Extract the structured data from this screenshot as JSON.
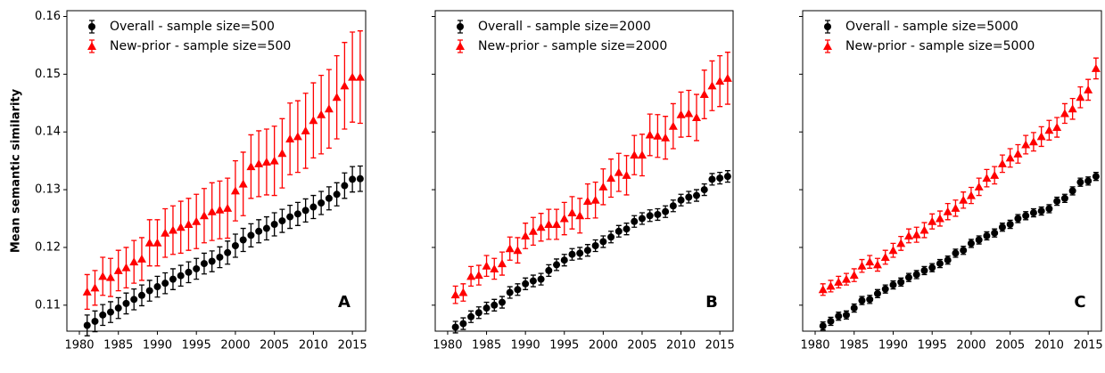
{
  "chart_data": [
    {
      "type": "errorbar",
      "ylabel": "Mean semantic similarity",
      "annotation": "A",
      "x": [
        1981,
        1982,
        1983,
        1984,
        1985,
        1986,
        1987,
        1988,
        1989,
        1990,
        1991,
        1992,
        1993,
        1994,
        1995,
        1996,
        1997,
        1998,
        1999,
        2000,
        2001,
        2002,
        2003,
        2004,
        2005,
        2006,
        2007,
        2008,
        2009,
        2010,
        2011,
        2012,
        2013,
        2014,
        2015,
        2016
      ],
      "xlim": [
        1978.4,
        2016.7
      ],
      "xticks": [
        1980,
        1985,
        1990,
        1995,
        2000,
        2005,
        2010,
        2015
      ],
      "ylim": [
        0.1055,
        0.161
      ],
      "yticks": [
        0.11,
        0.12,
        0.13,
        0.14,
        0.15,
        0.16
      ],
      "ytick_labels": true,
      "legend": "upper left",
      "series": [
        {
          "name": "Overall - sample size=500",
          "color": "#000000",
          "marker": "circle",
          "values": [
            0.1065,
            0.1072,
            0.1083,
            0.1088,
            0.1095,
            0.1103,
            0.111,
            0.1117,
            0.1125,
            0.1132,
            0.1138,
            0.1145,
            0.1151,
            0.1157,
            0.1163,
            0.1172,
            0.1176,
            0.1183,
            0.1191,
            0.1203,
            0.1213,
            0.1221,
            0.1228,
            0.1233,
            0.124,
            0.1246,
            0.1253,
            0.1258,
            0.1264,
            0.127,
            0.1277,
            0.1285,
            0.1292,
            0.1307,
            0.1318,
            0.1319
          ],
          "errors": [
            0.0018,
            0.0018,
            0.0018,
            0.0018,
            0.0018,
            0.0018,
            0.0018,
            0.0018,
            0.0018,
            0.0018,
            0.0018,
            0.0018,
            0.0018,
            0.0018,
            0.0018,
            0.0018,
            0.0018,
            0.0018,
            0.002,
            0.002,
            0.002,
            0.002,
            0.002,
            0.002,
            0.002,
            0.002,
            0.002,
            0.002,
            0.002,
            0.002,
            0.002,
            0.002,
            0.002,
            0.0022,
            0.0022,
            0.0022
          ]
        },
        {
          "name": "New-prior - sample size=500",
          "color": "#ff0000",
          "marker": "triangle",
          "values": [
            0.1123,
            0.113,
            0.115,
            0.1148,
            0.116,
            0.1165,
            0.1175,
            0.118,
            0.1208,
            0.1208,
            0.1225,
            0.123,
            0.1235,
            0.124,
            0.1245,
            0.1255,
            0.1262,
            0.1265,
            0.1268,
            0.1298,
            0.131,
            0.134,
            0.1345,
            0.1348,
            0.135,
            0.1363,
            0.1388,
            0.1392,
            0.1402,
            0.142,
            0.143,
            0.144,
            0.146,
            0.148,
            0.1495,
            0.1495
          ],
          "errors": [
            0.003,
            0.003,
            0.0033,
            0.0033,
            0.0035,
            0.0035,
            0.0037,
            0.0037,
            0.004,
            0.004,
            0.0042,
            0.0042,
            0.0045,
            0.0045,
            0.0047,
            0.0047,
            0.005,
            0.005,
            0.0052,
            0.0052,
            0.0055,
            0.0055,
            0.0057,
            0.0057,
            0.006,
            0.006,
            0.0062,
            0.0062,
            0.0065,
            0.0065,
            0.0068,
            0.0068,
            0.0072,
            0.0075,
            0.0078,
            0.008
          ]
        }
      ]
    },
    {
      "type": "errorbar",
      "annotation": "B",
      "x": [
        1981,
        1982,
        1983,
        1984,
        1985,
        1986,
        1987,
        1988,
        1989,
        1990,
        1991,
        1992,
        1993,
        1994,
        1995,
        1996,
        1997,
        1998,
        1999,
        2000,
        2001,
        2002,
        2003,
        2004,
        2005,
        2006,
        2007,
        2008,
        2009,
        2010,
        2011,
        2012,
        2013,
        2014,
        2015,
        2016
      ],
      "xlim": [
        1978.4,
        2016.7
      ],
      "xticks": [
        1980,
        1985,
        1990,
        1995,
        2000,
        2005,
        2010,
        2015
      ],
      "ylim": [
        0.1055,
        0.161
      ],
      "yticks": [
        0.11,
        0.12,
        0.13,
        0.14,
        0.15,
        0.16
      ],
      "ytick_labels": false,
      "legend": "upper left",
      "series": [
        {
          "name": "Overall - sample size=2000",
          "color": "#000000",
          "marker": "circle",
          "values": [
            0.1062,
            0.1068,
            0.108,
            0.1087,
            0.1095,
            0.11,
            0.1105,
            0.1122,
            0.1127,
            0.1137,
            0.1142,
            0.1145,
            0.116,
            0.117,
            0.1178,
            0.1188,
            0.119,
            0.1195,
            0.1203,
            0.121,
            0.1218,
            0.1228,
            0.1232,
            0.1245,
            0.125,
            0.1255,
            0.1257,
            0.1262,
            0.1272,
            0.1282,
            0.1287,
            0.129,
            0.13,
            0.1318,
            0.132,
            0.1323
          ],
          "errors": [
            0.001,
            0.001,
            0.001,
            0.001,
            0.001,
            0.001,
            0.001,
            0.001,
            0.001,
            0.001,
            0.001,
            0.001,
            0.001,
            0.001,
            0.001,
            0.001,
            0.001,
            0.001,
            0.001,
            0.001,
            0.001,
            0.001,
            0.001,
            0.001,
            0.001,
            0.001,
            0.001,
            0.001,
            0.001,
            0.001,
            0.001,
            0.001,
            0.001,
            0.001,
            0.001,
            0.001
          ]
        },
        {
          "name": "New-prior - sample size=2000",
          "color": "#ff0000",
          "marker": "triangle",
          "values": [
            0.1118,
            0.1122,
            0.115,
            0.1152,
            0.1168,
            0.1163,
            0.1172,
            0.1198,
            0.1195,
            0.122,
            0.1228,
            0.1235,
            0.124,
            0.124,
            0.125,
            0.126,
            0.1255,
            0.128,
            0.1282,
            0.1305,
            0.132,
            0.133,
            0.1325,
            0.136,
            0.136,
            0.1395,
            0.1393,
            0.139,
            0.141,
            0.143,
            0.1432,
            0.1425,
            0.1465,
            0.148,
            0.1488,
            0.1493
          ],
          "errors": [
            0.0015,
            0.0015,
            0.0017,
            0.0017,
            0.0018,
            0.0018,
            0.002,
            0.002,
            0.0022,
            0.0022,
            0.0024,
            0.0024,
            0.0026,
            0.0026,
            0.0028,
            0.0028,
            0.003,
            0.003,
            0.0031,
            0.0031,
            0.0033,
            0.0033,
            0.0034,
            0.0034,
            0.0036,
            0.0036,
            0.0037,
            0.0037,
            0.0039,
            0.0039,
            0.004,
            0.004,
            0.0042,
            0.0043,
            0.0044,
            0.0045
          ]
        }
      ]
    },
    {
      "type": "errorbar",
      "annotation": "C",
      "x": [
        1981,
        1982,
        1983,
        1984,
        1985,
        1986,
        1987,
        1988,
        1989,
        1990,
        1991,
        1992,
        1993,
        1994,
        1995,
        1996,
        1997,
        1998,
        1999,
        2000,
        2001,
        2002,
        2003,
        2004,
        2005,
        2006,
        2007,
        2008,
        2009,
        2010,
        2011,
        2012,
        2013,
        2014,
        2015,
        2016
      ],
      "xlim": [
        1978.4,
        2016.7
      ],
      "xticks": [
        1980,
        1985,
        1990,
        1995,
        2000,
        2005,
        2010,
        2015
      ],
      "ylim": [
        0.1055,
        0.161
      ],
      "yticks": [
        0.11,
        0.12,
        0.13,
        0.14,
        0.15,
        0.16
      ],
      "ytick_labels": false,
      "legend": "upper left",
      "series": [
        {
          "name": "Overall - sample size=5000",
          "color": "#000000",
          "marker": "circle",
          "values": [
            0.1064,
            0.1072,
            0.1081,
            0.1083,
            0.1095,
            0.1108,
            0.111,
            0.112,
            0.1128,
            0.1135,
            0.114,
            0.1148,
            0.1153,
            0.116,
            0.1165,
            0.1172,
            0.1178,
            0.119,
            0.1195,
            0.1207,
            0.1213,
            0.122,
            0.1225,
            0.1235,
            0.124,
            0.125,
            0.1255,
            0.126,
            0.1263,
            0.1267,
            0.128,
            0.1285,
            0.1298,
            0.1313,
            0.1315,
            0.1323
          ],
          "errors": [
            0.0007,
            0.0007,
            0.0007,
            0.0007,
            0.0007,
            0.0007,
            0.0007,
            0.0007,
            0.0007,
            0.0007,
            0.0007,
            0.0007,
            0.0007,
            0.0007,
            0.0007,
            0.0007,
            0.0007,
            0.0007,
            0.0007,
            0.0007,
            0.0007,
            0.0007,
            0.0007,
            0.0007,
            0.0007,
            0.0007,
            0.0007,
            0.0007,
            0.0007,
            0.0007,
            0.0007,
            0.0007,
            0.0007,
            0.0007,
            0.0007,
            0.0007
          ]
        },
        {
          "name": "New-prior - sample size=5000",
          "color": "#ff0000",
          "marker": "triangle",
          "values": [
            0.1127,
            0.1133,
            0.114,
            0.1145,
            0.1152,
            0.1168,
            0.1175,
            0.117,
            0.1183,
            0.1195,
            0.1207,
            0.122,
            0.1222,
            0.123,
            0.1245,
            0.125,
            0.1262,
            0.1268,
            0.1282,
            0.129,
            0.1305,
            0.132,
            0.1325,
            0.1345,
            0.1355,
            0.1362,
            0.1378,
            0.1383,
            0.1392,
            0.1403,
            0.1408,
            0.1432,
            0.144,
            0.146,
            0.1473,
            0.151
          ],
          "errors": [
            0.001,
            0.001,
            0.001,
            0.001,
            0.0011,
            0.0011,
            0.0011,
            0.0011,
            0.0012,
            0.0012,
            0.0012,
            0.0012,
            0.0013,
            0.0013,
            0.0013,
            0.0013,
            0.0014,
            0.0014,
            0.0014,
            0.0014,
            0.0015,
            0.0015,
            0.0015,
            0.0015,
            0.0016,
            0.0016,
            0.0016,
            0.0016,
            0.0017,
            0.0017,
            0.0017,
            0.0017,
            0.0018,
            0.0018,
            0.0018,
            0.0018
          ]
        }
      ]
    }
  ]
}
